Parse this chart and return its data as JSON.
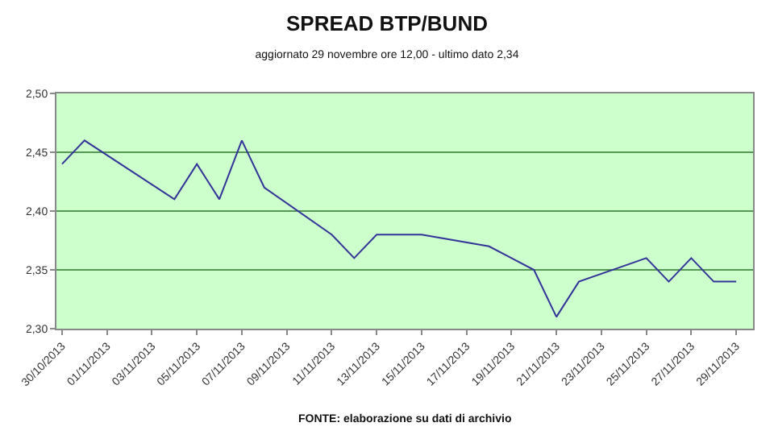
{
  "chart_data": {
    "type": "line",
    "title": "SPREAD BTP/BUND",
    "subtitle": "aggiornato 29 novembre ore 12,00 - ultimo dato 2,34",
    "x": [
      "2013-10-30",
      "2013-10-31",
      "2013-11-04",
      "2013-11-05",
      "2013-11-06",
      "2013-11-07",
      "2013-11-08",
      "2013-11-11",
      "2013-11-12",
      "2013-11-13",
      "2013-11-14",
      "2013-11-15",
      "2013-11-18",
      "2013-11-19",
      "2013-11-20",
      "2013-11-21",
      "2013-11-22",
      "2013-11-25",
      "2013-11-26",
      "2013-11-27",
      "2013-11-28",
      "2013-11-29"
    ],
    "series": [
      {
        "color": "#333399",
        "values": [
          2.44,
          2.46,
          2.41,
          2.44,
          2.41,
          2.46,
          2.42,
          2.38,
          2.36,
          2.38,
          2.38,
          2.38,
          2.37,
          2.36,
          2.35,
          2.31,
          2.34,
          2.36,
          2.34,
          2.36,
          2.34,
          2.34
        ]
      }
    ],
    "ylim": [
      2.3,
      2.5
    ],
    "yticks": [
      {
        "value": 2.3,
        "label": "2,30"
      },
      {
        "value": 2.35,
        "label": "2,35"
      },
      {
        "value": 2.4,
        "label": "2,40"
      },
      {
        "value": 2.45,
        "label": "2,45"
      },
      {
        "value": 2.5,
        "label": "2,50"
      }
    ],
    "xlim": [
      "2013-10-29T18:00",
      "2013-11-29T18:00"
    ],
    "xticks": [
      {
        "value": "2013-10-30",
        "label": "30/10/2013"
      },
      {
        "value": "2013-11-01",
        "label": "01/11/2013"
      },
      {
        "value": "2013-11-03",
        "label": "03/11/2013"
      },
      {
        "value": "2013-11-05",
        "label": "05/11/2013"
      },
      {
        "value": "2013-11-07",
        "label": "07/11/2013"
      },
      {
        "value": "2013-11-09",
        "label": "09/11/2013"
      },
      {
        "value": "2013-11-11",
        "label": "11/11/2013"
      },
      {
        "value": "2013-11-13",
        "label": "13/11/2013"
      },
      {
        "value": "2013-11-15",
        "label": "15/11/2013"
      },
      {
        "value": "2013-11-17",
        "label": "17/11/2013"
      },
      {
        "value": "2013-11-19",
        "label": "19/11/2013"
      },
      {
        "value": "2013-11-21",
        "label": "21/11/2013"
      },
      {
        "value": "2013-11-23",
        "label": "23/11/2013"
      },
      {
        "value": "2013-11-25",
        "label": "25/11/2013"
      },
      {
        "value": "2013-11-27",
        "label": "27/11/2013"
      },
      {
        "value": "2013-11-29",
        "label": "29/11/2013"
      }
    ],
    "grid": "y",
    "marker": "none",
    "line_style": "solid",
    "annotations": [
      "FONTE: elaborazione su dati di archivio"
    ]
  }
}
